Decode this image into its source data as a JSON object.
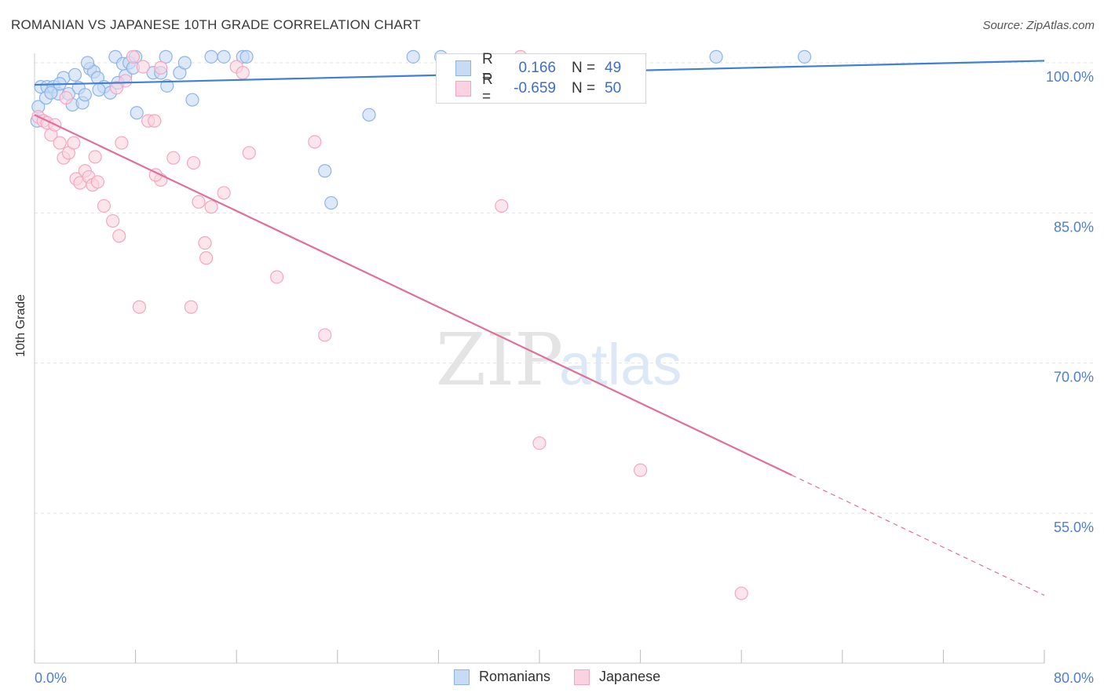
{
  "title": "ROMANIAN VS JAPANESE 10TH GRADE CORRELATION CHART",
  "source": "Source: ZipAtlas.com",
  "watermark": {
    "zip": "ZIP",
    "atlas": "atlas"
  },
  "legend": {
    "rows": [
      {
        "r_label": "R =",
        "r_value": "0.166",
        "n_label": "N =",
        "n_value": "49",
        "color": "#8db4e8",
        "fill": "#c7dbf5"
      },
      {
        "r_label": "R =",
        "r_value": "-0.659",
        "n_label": "N =",
        "n_value": "50",
        "color": "#f4a6c0",
        "fill": "#fbd3e0"
      }
    ]
  },
  "bottom_legend": [
    {
      "label": "Romanians",
      "color": "#8db4e8",
      "fill": "#c7dbf5"
    },
    {
      "label": "Japanese",
      "color": "#f4a6c0",
      "fill": "#fbd3e0"
    }
  ],
  "chart_data": {
    "type": "scatter",
    "title": "ROMANIAN VS JAPANESE 10TH GRADE CORRELATION CHART",
    "xlabel": "",
    "ylabel": "10th Grade",
    "xlim": [
      0,
      80
    ],
    "ylim": [
      37.5,
      100
    ],
    "x_ticks": [
      "0.0%",
      "80.0%"
    ],
    "y_ticks": [
      "100.0%",
      "85.0%",
      "70.0%",
      "55.0%"
    ],
    "y_tick_values": [
      100,
      85,
      70,
      55
    ],
    "grid": true,
    "legend_position": "top-center",
    "series": [
      {
        "name": "Romanians",
        "color": "#3f7fd6",
        "marker_fill": "#c7dbf5",
        "marker_stroke": "#8db4e8",
        "trend": {
          "x": [
            0,
            80
          ],
          "y": [
            97.8,
            100.2
          ]
        },
        "points": [
          [
            0.2,
            94.2
          ],
          [
            0.5,
            97.6
          ],
          [
            1.0,
            97.6
          ],
          [
            1.5,
            97.6
          ],
          [
            1.9,
            96.9
          ],
          [
            2.3,
            98.5
          ],
          [
            2.7,
            96.9
          ],
          [
            3.0,
            95.8
          ],
          [
            3.2,
            98.8
          ],
          [
            3.5,
            97.5
          ],
          [
            3.8,
            96.0
          ],
          [
            4.0,
            96.8
          ],
          [
            4.4,
            99.4
          ],
          [
            4.7,
            99.1
          ],
          [
            5.0,
            98.5
          ],
          [
            5.5,
            97.6
          ],
          [
            6.0,
            97.0
          ],
          [
            6.4,
            100.6
          ],
          [
            7.0,
            99.9
          ],
          [
            7.5,
            100.0
          ],
          [
            7.2,
            98.7
          ],
          [
            8.0,
            100.6
          ],
          [
            8.1,
            95.0
          ],
          [
            9.4,
            99.0
          ],
          [
            10.0,
            99.0
          ],
          [
            10.4,
            100.6
          ],
          [
            10.5,
            97.7
          ],
          [
            11.5,
            99.0
          ],
          [
            11.9,
            100.0
          ],
          [
            12.5,
            96.3
          ],
          [
            14.0,
            100.6
          ],
          [
            15.0,
            100.6
          ],
          [
            16.5,
            100.6
          ],
          [
            16.8,
            100.6
          ],
          [
            23.0,
            89.2
          ],
          [
            23.5,
            86.0
          ],
          [
            26.5,
            94.8
          ],
          [
            30.0,
            100.6
          ],
          [
            32.2,
            100.6
          ],
          [
            54.0,
            100.6
          ],
          [
            61.0,
            100.6
          ],
          [
            0.3,
            95.6
          ],
          [
            0.9,
            96.5
          ],
          [
            5.1,
            97.3
          ],
          [
            6.6,
            98.0
          ],
          [
            2.0,
            97.9
          ],
          [
            1.3,
            97.0
          ],
          [
            4.2,
            100.0
          ],
          [
            7.8,
            99.5
          ]
        ]
      },
      {
        "name": "Japanese",
        "color": "#e0709a",
        "marker_fill": "#fbd3e0",
        "marker_stroke": "#f4a6c0",
        "trend": {
          "x": [
            0,
            60
          ],
          "y": [
            94.8,
            58.8
          ]
        },
        "trend_dashed": {
          "x": [
            60,
            80
          ],
          "y": [
            58.8,
            46.8
          ]
        },
        "points": [
          [
            0.3,
            94.6
          ],
          [
            0.7,
            94.2
          ],
          [
            1.0,
            94.0
          ],
          [
            1.3,
            92.8
          ],
          [
            1.6,
            93.8
          ],
          [
            2.0,
            92.0
          ],
          [
            2.3,
            90.5
          ],
          [
            2.7,
            91.0
          ],
          [
            3.1,
            92.0
          ],
          [
            3.3,
            88.4
          ],
          [
            3.6,
            88.0
          ],
          [
            4.0,
            89.2
          ],
          [
            4.3,
            88.6
          ],
          [
            4.6,
            87.8
          ],
          [
            4.8,
            90.6
          ],
          [
            5.0,
            88.1
          ],
          [
            5.5,
            85.7
          ],
          [
            6.2,
            84.2
          ],
          [
            6.7,
            82.7
          ],
          [
            6.9,
            92.0
          ],
          [
            7.2,
            98.2
          ],
          [
            7.8,
            100.6
          ],
          [
            8.3,
            75.6
          ],
          [
            8.6,
            99.6
          ],
          [
            9.0,
            94.2
          ],
          [
            9.5,
            94.2
          ],
          [
            10.0,
            99.5
          ],
          [
            10.0,
            88.3
          ],
          [
            11.0,
            90.5
          ],
          [
            12.4,
            75.6
          ],
          [
            12.6,
            90.0
          ],
          [
            13.0,
            86.1
          ],
          [
            13.6,
            80.5
          ],
          [
            14.0,
            85.6
          ],
          [
            16.0,
            99.6
          ],
          [
            16.5,
            99.0
          ],
          [
            17.0,
            91.0
          ],
          [
            19.2,
            78.6
          ],
          [
            22.2,
            92.1
          ],
          [
            23.0,
            72.8
          ],
          [
            37.0,
            85.7
          ],
          [
            38.5,
            100.6
          ],
          [
            40.0,
            62.0
          ],
          [
            48.0,
            59.3
          ],
          [
            56.0,
            47.0
          ],
          [
            2.5,
            96.5
          ],
          [
            6.5,
            97.5
          ],
          [
            13.5,
            82.0
          ],
          [
            9.6,
            88.8
          ],
          [
            15.0,
            87.0
          ]
        ]
      }
    ]
  }
}
